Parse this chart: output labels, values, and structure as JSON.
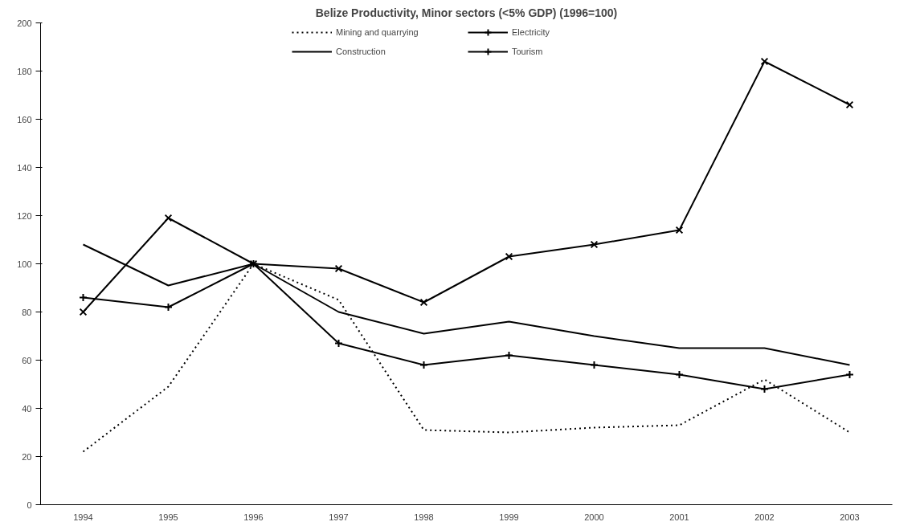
{
  "chart_data": {
    "type": "line",
    "title": "Belize Productivity, Minor sectors (<5% GDP) (1996=100)",
    "categories": [
      "1994",
      "1995",
      "1996",
      "1997",
      "1998",
      "1999",
      "2000",
      "2001",
      "2002",
      "2003"
    ],
    "series": [
      {
        "name": "Mining and quarrying",
        "color": "#000000",
        "line_style": "dotted",
        "marker": "none",
        "values": [
          22,
          49,
          100,
          85,
          31,
          30,
          32,
          33,
          52,
          30
        ]
      },
      {
        "name": "Electricity",
        "color": "#000000",
        "line_style": "solid",
        "marker": "x",
        "values": [
          80,
          119,
          100,
          98,
          84,
          103,
          108,
          114,
          184,
          166
        ]
      },
      {
        "name": "Construction",
        "color": "#000000",
        "line_style": "solid",
        "marker": "none",
        "values": [
          108,
          91,
          100,
          80,
          71,
          76,
          70,
          65,
          65,
          58
        ]
      },
      {
        "name": "Tourism",
        "color": "#000000",
        "line_style": "solid",
        "marker": "cross",
        "values": [
          86,
          82,
          100,
          67,
          58,
          62,
          58,
          54,
          48,
          54
        ]
      }
    ],
    "ylim": [
      0,
      200
    ],
    "yticks": [
      0,
      20,
      40,
      60,
      80,
      100,
      120,
      140,
      160,
      180,
      200
    ],
    "grid": false,
    "legend": "top"
  }
}
